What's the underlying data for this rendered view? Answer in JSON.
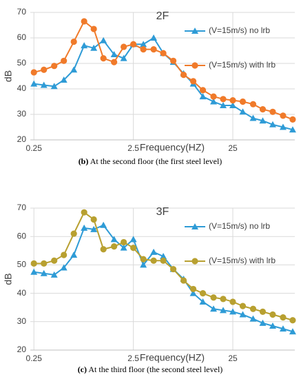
{
  "chart_data": [
    {
      "type": "line",
      "title": "2F",
      "xlabel": "Frequency(HZ)",
      "ylabel": "dB",
      "log_x": true,
      "x": [
        0.25,
        0.315,
        0.4,
        0.5,
        0.63,
        0.8,
        1,
        1.25,
        1.6,
        2,
        2.5,
        3.15,
        4,
        5,
        6.3,
        8,
        10,
        12.5,
        16,
        20,
        25,
        31.5,
        40,
        50,
        63,
        80,
        100
      ],
      "xlim": [
        0.23,
        105
      ],
      "xticks": [
        0.25,
        2.5,
        25
      ],
      "ylim": [
        20,
        70
      ],
      "yticks": [
        20,
        30,
        40,
        50,
        60,
        70
      ],
      "grid": true,
      "series": [
        {
          "name": "(V=15m/s) no lrb",
          "color": "#2e9bd6",
          "marker": "triangle",
          "values": [
            42,
            41.5,
            41,
            43.5,
            47.5,
            57,
            56,
            59,
            53.5,
            52,
            57.5,
            57.5,
            60,
            54,
            50.5,
            46,
            42,
            37,
            35,
            33.5,
            33.5,
            31,
            28.5,
            27.5,
            26,
            25,
            24
          ]
        },
        {
          "name": "(V=15m/s) with lrb",
          "color": "#f07a2a",
          "marker": "circle",
          "values": [
            46.5,
            47.5,
            49,
            51,
            58.5,
            66.5,
            63.5,
            52,
            50.5,
            56.5,
            57.5,
            55.5,
            55.5,
            54,
            51,
            45.5,
            43,
            39.5,
            37,
            36,
            35.5,
            35,
            34,
            32,
            31,
            29.5,
            28
          ]
        }
      ]
    },
    {
      "type": "line",
      "title": "3F",
      "xlabel": "Frequency(HZ)",
      "ylabel": "dB",
      "log_x": true,
      "x": [
        0.25,
        0.315,
        0.4,
        0.5,
        0.63,
        0.8,
        1,
        1.25,
        1.6,
        2,
        2.5,
        3.15,
        4,
        5,
        6.3,
        8,
        10,
        12.5,
        16,
        20,
        25,
        31.5,
        40,
        50,
        63,
        80,
        100
      ],
      "xlim": [
        0.23,
        105
      ],
      "xticks": [
        0.25,
        2.5,
        25
      ],
      "ylim": [
        20,
        70
      ],
      "yticks": [
        20,
        30,
        40,
        50,
        60,
        70
      ],
      "grid": true,
      "series": [
        {
          "name": "(V=15m/s) no lrb",
          "color": "#2e9bd6",
          "marker": "triangle",
          "values": [
            47.5,
            47,
            46.5,
            49,
            53.5,
            63,
            62.5,
            64,
            59,
            56,
            59,
            50,
            54.5,
            53,
            48.5,
            45,
            40,
            37,
            34.5,
            34,
            33.5,
            32.5,
            31,
            29.5,
            28.5,
            27.5,
            26.5
          ]
        },
        {
          "name": "(V=15m/s) with lrb",
          "color": "#b8a030",
          "marker": "circle",
          "values": [
            50.5,
            50.5,
            51.5,
            53.5,
            61,
            68.5,
            66,
            55.5,
            56.5,
            58,
            56,
            52,
            51.5,
            51.5,
            48.5,
            44.5,
            41.5,
            40,
            38.5,
            38,
            37,
            35.5,
            34.5,
            33.5,
            32.5,
            31.5,
            30.5
          ]
        }
      ]
    }
  ],
  "captions": [
    {
      "label": "(b)",
      "text": " At the second floor (the first steel level)"
    },
    {
      "label": "(c)",
      "text": " At the third floor (the second steel level)"
    }
  ]
}
